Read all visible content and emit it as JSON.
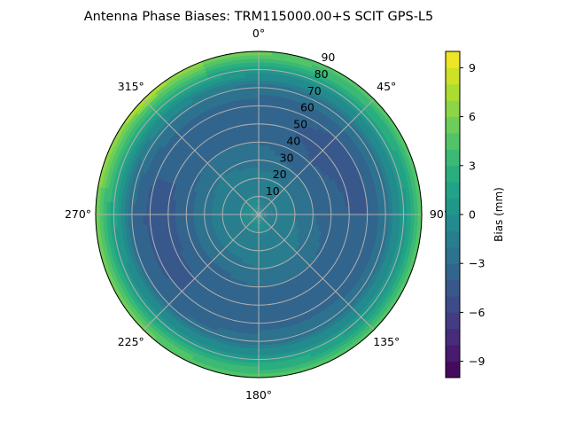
{
  "chart_data": {
    "type": "heatmap",
    "projection": "polar",
    "title": "Antenna Phase Biases: TRM115000.00+S  SCIT GPS-L5",
    "theta_direction": "clockwise",
    "theta_zero": "top",
    "theta_ticks": [
      "0°",
      "45°",
      "90°",
      "135°",
      "180°",
      "225°",
      "270°",
      "315°"
    ],
    "r_ticks": [
      "10",
      "20",
      "30",
      "40",
      "50",
      "60",
      "70",
      "80",
      "90"
    ],
    "r_range": [
      0,
      90
    ],
    "grid": true,
    "colormap": "viridis",
    "colorbar": {
      "label": "Bias (mm)",
      "range": [
        -10,
        10
      ],
      "levels": 20,
      "ticks": [
        "−9",
        "−6",
        "−3",
        "0",
        "3",
        "6",
        "9"
      ],
      "tick_values": [
        -9,
        -6,
        -3,
        0,
        3,
        6,
        9
      ]
    },
    "zenith": [
      0,
      10,
      20,
      30,
      40,
      50,
      60,
      70,
      80,
      90
    ],
    "azimuth": [
      0,
      45,
      90,
      135,
      180,
      225,
      270,
      315
    ],
    "values": [
      [
        -1,
        -1,
        -1.5,
        -2.5,
        -3,
        -3.5,
        -3.5,
        -2.5,
        1,
        5.5
      ],
      [
        -1,
        -1.2,
        -2,
        -3,
        -4,
        -4.5,
        -4,
        -2.5,
        1,
        5
      ],
      [
        -1,
        -1.2,
        -2,
        -3,
        -3.5,
        -4,
        -4,
        -2.5,
        0.5,
        4.5
      ],
      [
        -1,
        -1,
        -1.5,
        -2,
        -3,
        -3.5,
        -3.5,
        -2.5,
        0.5,
        4.5
      ],
      [
        -1,
        -1,
        -1.5,
        -2,
        -3,
        -3.5,
        -3.5,
        -2.5,
        1,
        5
      ],
      [
        -1,
        -1,
        -1.5,
        -2.5,
        -3.5,
        -4,
        -4,
        -3,
        1,
        5.5
      ],
      [
        -1,
        -1,
        -1.5,
        -2.5,
        -3.5,
        -4.5,
        -4.5,
        -3,
        1.5,
        6
      ],
      [
        -1,
        -1,
        -1.5,
        -2,
        -3,
        -3.5,
        -3.5,
        -2,
        2,
        8
      ]
    ]
  }
}
